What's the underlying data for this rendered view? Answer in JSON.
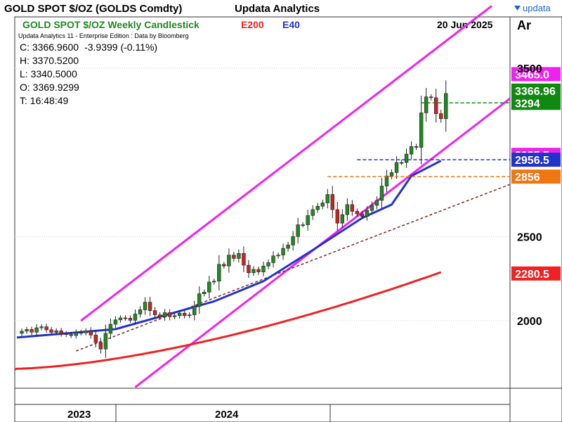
{
  "header": {
    "title": "GOLD SPOT $/OZ (GOLDS Comdty)",
    "brand": "Updata Analytics",
    "logo_text": "updata",
    "edition": "Updata Analytics 11 - Enterprise Edition : Data by Bloomberg",
    "date": "20 Jun 2025",
    "axis_mode": "Ar"
  },
  "ohlc": {
    "close": "C: 3366.9600",
    "change": "-3.9399 (-0.11%)",
    "high": "H: 3370.5200",
    "low": "L: 3340.5000",
    "open": "O: 3369.9299",
    "time": "T: 16:48:49"
  },
  "legend": {
    "chart_label": "GOLD SPOT $/OZ Weekly Candlestick",
    "e200": "E200",
    "e40": "E40"
  },
  "chart_data": {
    "type": "candlestick",
    "title": "GOLD SPOT $/OZ Weekly Candlestick",
    "y_ticks": [
      2000,
      2500,
      3500
    ],
    "y_tick_labels": [
      "2000",
      "2500",
      "3500"
    ],
    "ylim": [
      1640,
      3760
    ],
    "x_labels": [
      "2023",
      "2024"
    ],
    "candle_count": 87,
    "candle_seed": [
      1925,
      1938,
      1948,
      1932,
      1958,
      1964,
      1946,
      1931,
      1940,
      1923,
      1918,
      1912,
      1930,
      1928,
      1940,
      1915,
      1871,
      1832,
      1925,
      1979,
      2005,
      2017,
      2015,
      2003,
      2040,
      2065,
      2110,
      2060,
      2035,
      2022,
      2048,
      2024,
      2030,
      2045,
      2030,
      2035,
      2085,
      2160,
      2170,
      2230,
      2235,
      2335,
      2325,
      2390,
      2370,
      2400,
      2330,
      2285,
      2305,
      2290,
      2325,
      2345,
      2385,
      2390,
      2430,
      2450,
      2500,
      2570,
      2570,
      2625,
      2660,
      2680,
      2700,
      2750,
      2660,
      2580,
      2630,
      2690,
      2650,
      2635,
      2620,
      2655,
      2685,
      2715,
      2800,
      2860,
      2880,
      2940,
      2940,
      2990,
      3035,
      3030,
      3235,
      3330,
      3325,
      3230,
      3200,
      3350,
      3290,
      3380,
      3395,
      3367
    ],
    "series": [
      {
        "name": "E200",
        "color": "#ee2222",
        "x": [
          0,
          86
        ],
        "values": [
          1715,
          2288
        ]
      },
      {
        "name": "E40",
        "color": "#2233cc",
        "x": [
          0,
          20,
          40,
          50,
          60,
          70,
          76,
          80,
          86
        ],
        "values": [
          1900,
          1950,
          2115,
          2235,
          2420,
          2610,
          2690,
          2860,
          2950
        ]
      }
    ],
    "channel_color": "#ee22ee",
    "levels": [
      {
        "label": "3465.0",
        "value": 3465.0,
        "color": "#ee22ee",
        "text_color": "#ffffff",
        "style": "none"
      },
      {
        "label": "3366.96",
        "value": 3366.96,
        "color": "#118811",
        "text_color": "#ffffff",
        "style": "none"
      },
      {
        "label": "3294",
        "value": 3294,
        "color": "#118811",
        "text_color": "#ffffff",
        "style": "dashed"
      },
      {
        "label": "2985.5",
        "value": 2985.5,
        "color": "#ee22ee",
        "text_color": "#ffffff",
        "style": "none"
      },
      {
        "label": "2956.5",
        "value": 2956.5,
        "color": "#2233cc",
        "text_color": "#ffffff",
        "style": "dashed"
      },
      {
        "label": "2856",
        "value": 2856,
        "color": "#ee7711",
        "text_color": "#ffffff",
        "style": "dashed"
      },
      {
        "label": "2280.5",
        "value": 2280.5,
        "color": "#ee2222",
        "text_color": "#ffffff",
        "style": "none"
      }
    ]
  },
  "colors": {
    "title": "#000000",
    "legend_green": "#228822",
    "legend_red": "#ee2222",
    "legend_blue": "#2233cc",
    "up_candle": "#228822",
    "down_candle": "#cc2222",
    "trend_dashed": "#882222",
    "logo_blue": "#1a66cc"
  }
}
